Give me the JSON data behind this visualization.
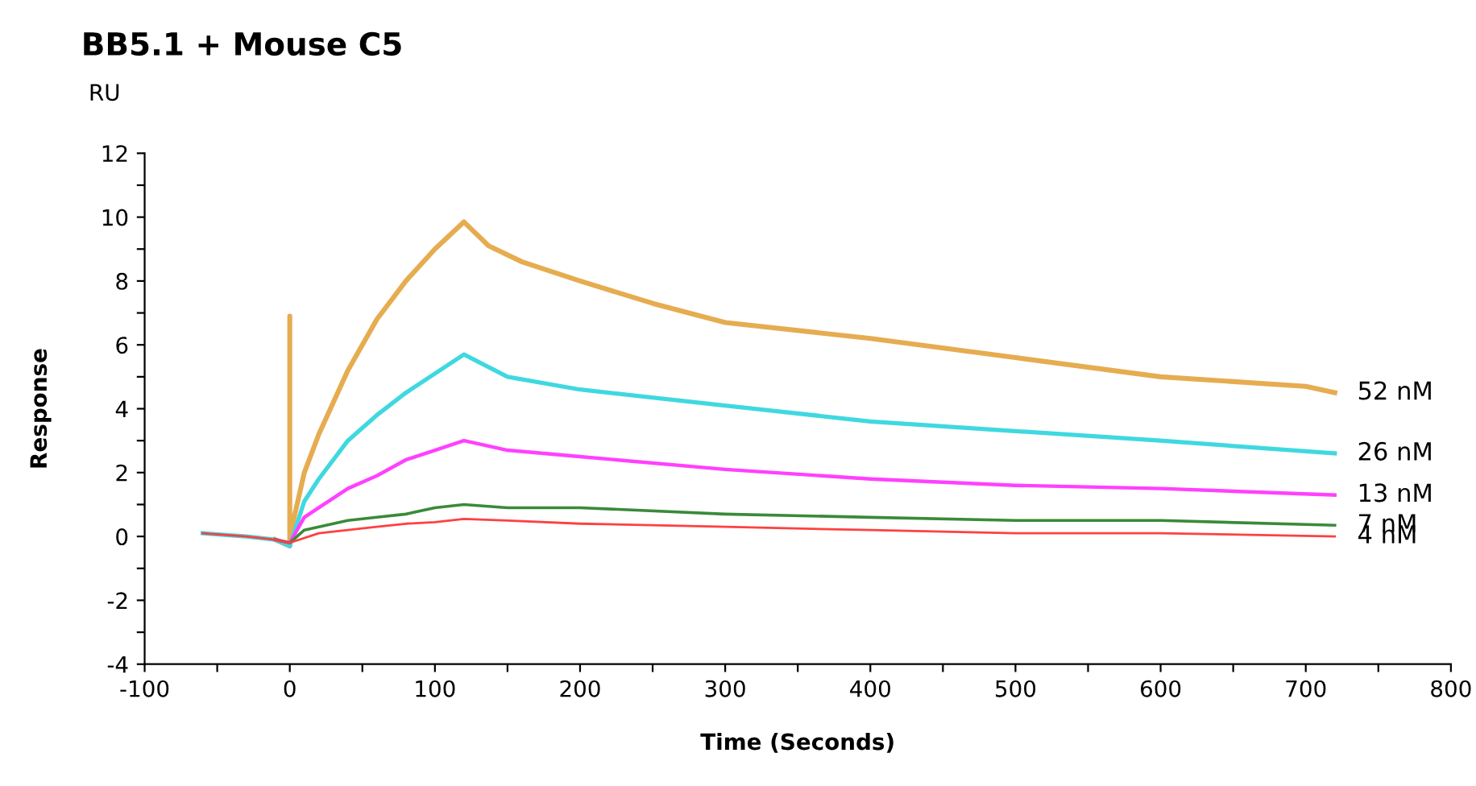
{
  "chart_data": {
    "type": "line",
    "title": "BB5.1 + Mouse C5",
    "xlabel": "Time (Seconds)",
    "ylabel": "Response",
    "annotations": [
      "RU"
    ],
    "xlim": [
      -100,
      800
    ],
    "ylim": [
      -4,
      12
    ],
    "xticks": [
      -100,
      {
        "value": -50,
        "label": null
      },
      0,
      {
        "value": 50,
        "label": null
      },
      100,
      {
        "value": 150,
        "label": null
      },
      200,
      {
        "value": 250,
        "label": null
      },
      300,
      {
        "value": 350,
        "label": null
      },
      400,
      {
        "value": 450,
        "label": null
      },
      500,
      {
        "value": 550,
        "label": null
      },
      600,
      {
        "value": 650,
        "label": null
      },
      700,
      {
        "value": 750,
        "label": null
      },
      800
    ],
    "yticks": [
      -4,
      {
        "value": -3,
        "label": null
      },
      -2,
      {
        "value": -1,
        "label": null
      },
      0,
      {
        "value": 1,
        "label": null
      },
      2,
      {
        "value": 3,
        "label": null
      },
      4,
      {
        "value": 5,
        "label": null
      },
      6,
      {
        "value": 7,
        "label": null
      },
      8,
      {
        "value": 9,
        "label": null
      },
      10,
      {
        "value": 11,
        "label": null
      },
      12
    ],
    "grid": false,
    "legend": false,
    "marker": "none",
    "line_style": "solid",
    "series": [
      {
        "name": "52 nM",
        "color": "#e6ac50",
        "x": [
          -10,
          0,
          0,
          0,
          10,
          20,
          40,
          60,
          80,
          100,
          120,
          137,
          160,
          200,
          250,
          300,
          400,
          500,
          600,
          700,
          720
        ],
        "values": [
          -0.1,
          -0.3,
          6.9,
          0.0,
          2.0,
          3.2,
          5.2,
          6.8,
          8.0,
          9.0,
          9.85,
          9.1,
          8.6,
          8.0,
          7.3,
          6.7,
          6.2,
          5.6,
          5.0,
          4.7,
          4.5
        ]
      },
      {
        "name": "26 nM",
        "color": "#40d8e0",
        "x": [
          -60,
          -30,
          -10,
          0,
          10,
          20,
          40,
          60,
          80,
          100,
          120,
          150,
          200,
          300,
          400,
          500,
          600,
          720
        ],
        "values": [
          0.1,
          0.0,
          -0.1,
          -0.3,
          1.1,
          1.8,
          3.0,
          3.8,
          4.5,
          5.1,
          5.7,
          5.0,
          4.6,
          4.1,
          3.6,
          3.3,
          3.0,
          2.6
        ]
      },
      {
        "name": "13 nM",
        "color": "#ff40ff",
        "x": [
          -10,
          0,
          10,
          20,
          40,
          60,
          80,
          100,
          120,
          150,
          200,
          300,
          400,
          500,
          600,
          720
        ],
        "values": [
          -0.1,
          -0.2,
          0.6,
          0.9,
          1.5,
          1.9,
          2.4,
          2.7,
          3.0,
          2.7,
          2.5,
          2.1,
          1.8,
          1.6,
          1.5,
          1.3
        ]
      },
      {
        "name": "7 nM",
        "color": "#3a8a3a",
        "x": [
          -10,
          0,
          10,
          20,
          40,
          60,
          80,
          100,
          120,
          150,
          200,
          300,
          400,
          500,
          600,
          720
        ],
        "values": [
          -0.1,
          -0.2,
          0.2,
          0.3,
          0.5,
          0.6,
          0.7,
          0.9,
          1.0,
          0.9,
          0.9,
          0.7,
          0.6,
          0.5,
          0.5,
          0.35
        ]
      },
      {
        "name": "4 nM",
        "color": "#ff4040",
        "x": [
          -60,
          -30,
          -10,
          0,
          20,
          40,
          60,
          80,
          100,
          120,
          150,
          200,
          300,
          400,
          500,
          600,
          720
        ],
        "values": [
          0.1,
          0.0,
          -0.1,
          -0.2,
          0.1,
          0.2,
          0.3,
          0.4,
          0.45,
          0.55,
          0.5,
          0.4,
          0.3,
          0.2,
          0.1,
          0.1,
          0.0
        ]
      }
    ]
  }
}
